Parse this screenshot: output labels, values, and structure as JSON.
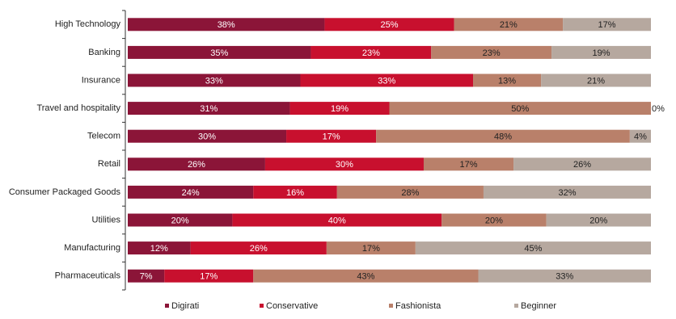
{
  "chart_data": {
    "type": "stacked-bar-horizontal",
    "categories": [
      "High Technology",
      "Banking",
      "Insurance",
      "Travel and hospitality",
      "Telecom",
      "Retail",
      "Consumer Packaged Goods",
      "Utilities",
      "Manufacturing",
      "Pharmaceuticals"
    ],
    "series": [
      {
        "name": "Digirati",
        "color": "#8b1538",
        "values": [
          38,
          35,
          33,
          31,
          30,
          26,
          24,
          20,
          12,
          7
        ],
        "value_labels": [
          "38%",
          "35%",
          "33%",
          "31%",
          "30%",
          "26%",
          "24%",
          "20%",
          "12%",
          "7%"
        ]
      },
      {
        "name": "Conservative",
        "color": "#c8102e",
        "values": [
          25,
          23,
          33,
          19,
          17,
          30,
          16,
          40,
          26,
          17
        ],
        "value_labels": [
          "25%",
          "23%",
          "33%",
          "19%",
          "17%",
          "30%",
          "16%",
          "40%",
          "26%",
          "17%"
        ]
      },
      {
        "name": "Fashionista",
        "color": "#b9806a",
        "values": [
          21,
          23,
          13,
          50,
          48,
          17,
          28,
          20,
          17,
          43
        ],
        "value_labels": [
          "21%",
          "23%",
          "13%",
          "50%",
          "48%",
          "17%",
          "28%",
          "20%",
          "17%",
          "43%"
        ]
      },
      {
        "name": "Beginner",
        "color": "#b6a89f",
        "values": [
          17,
          19,
          21,
          0,
          4,
          26,
          32,
          20,
          45,
          33
        ],
        "value_labels": [
          "17%",
          "19%",
          "21%",
          "0%",
          "4%",
          "26%",
          "32%",
          "20%",
          "45%",
          "33%"
        ]
      }
    ]
  }
}
